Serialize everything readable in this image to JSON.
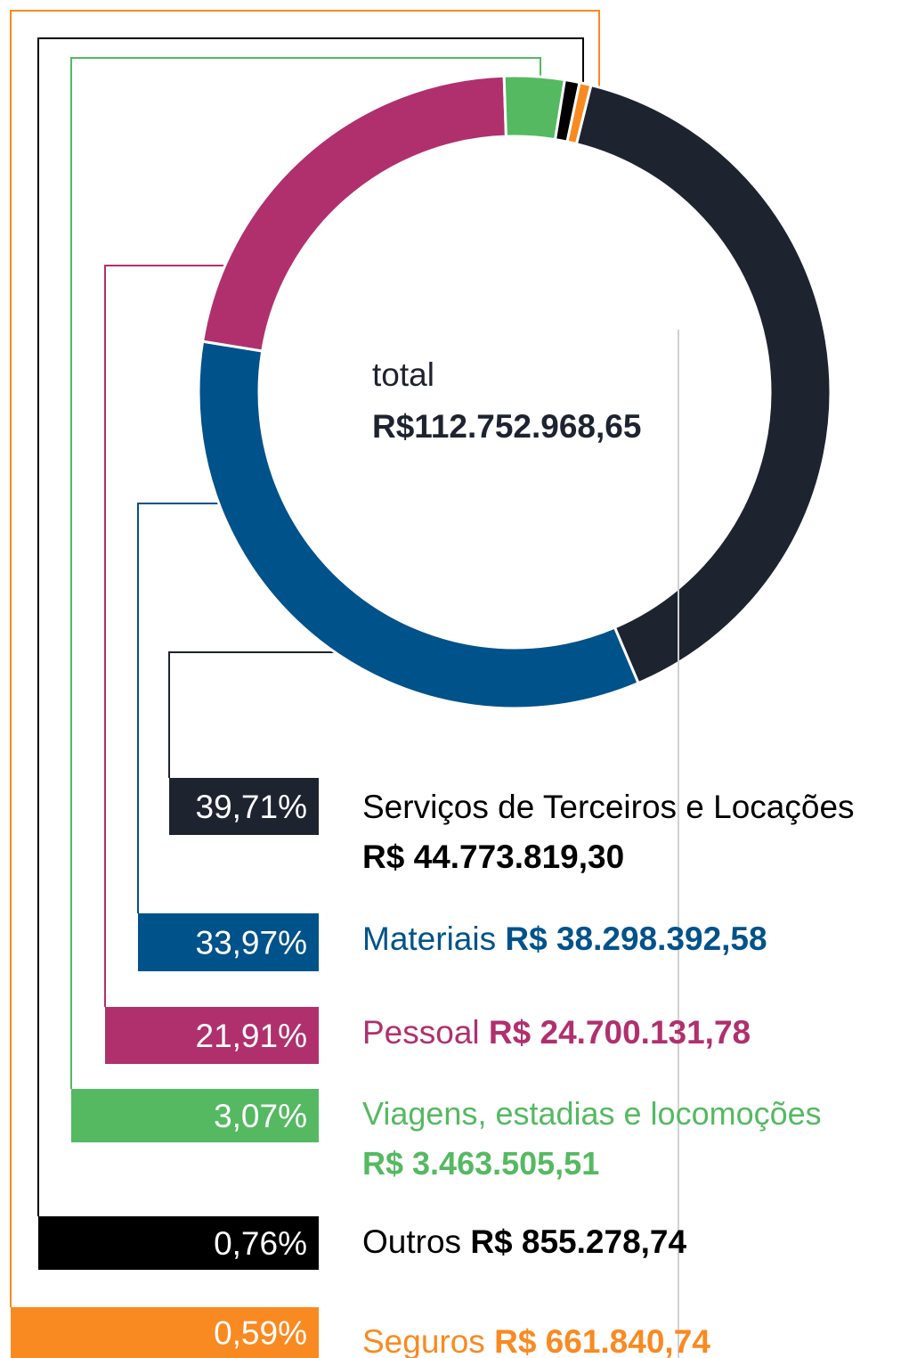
{
  "chart_data": {
    "type": "pie",
    "center_label": "total",
    "center_value": "R$112.752.968,65",
    "categories": [
      "Serviços de Terceiros e Locações",
      "Materiais",
      "Pessoal",
      "Viagens, estadias e locomoções",
      "Outros",
      "Seguros"
    ],
    "values": [
      39.71,
      33.97,
      21.91,
      3.07,
      0.76,
      0.59
    ],
    "value_labels": [
      "39,71%",
      "33,97%",
      "21,91%",
      "3,07%",
      "0,76%",
      "0,59%"
    ],
    "amounts": [
      "R$ 44.773.819,30",
      "R$ 38.298.392,58",
      "R$ 24.700.131,78",
      "R$ 3.463.505,51",
      "R$ 855.278,74",
      "R$ 661.840,74"
    ],
    "colors": [
      "#1e2330",
      "#00528a",
      "#b0306e",
      "#55b962",
      "#000000",
      "#f98a21"
    ],
    "text_colors": [
      "#000000",
      "#00528a",
      "#b0306e",
      "#55b962",
      "#000000",
      "#f98a21"
    ]
  }
}
